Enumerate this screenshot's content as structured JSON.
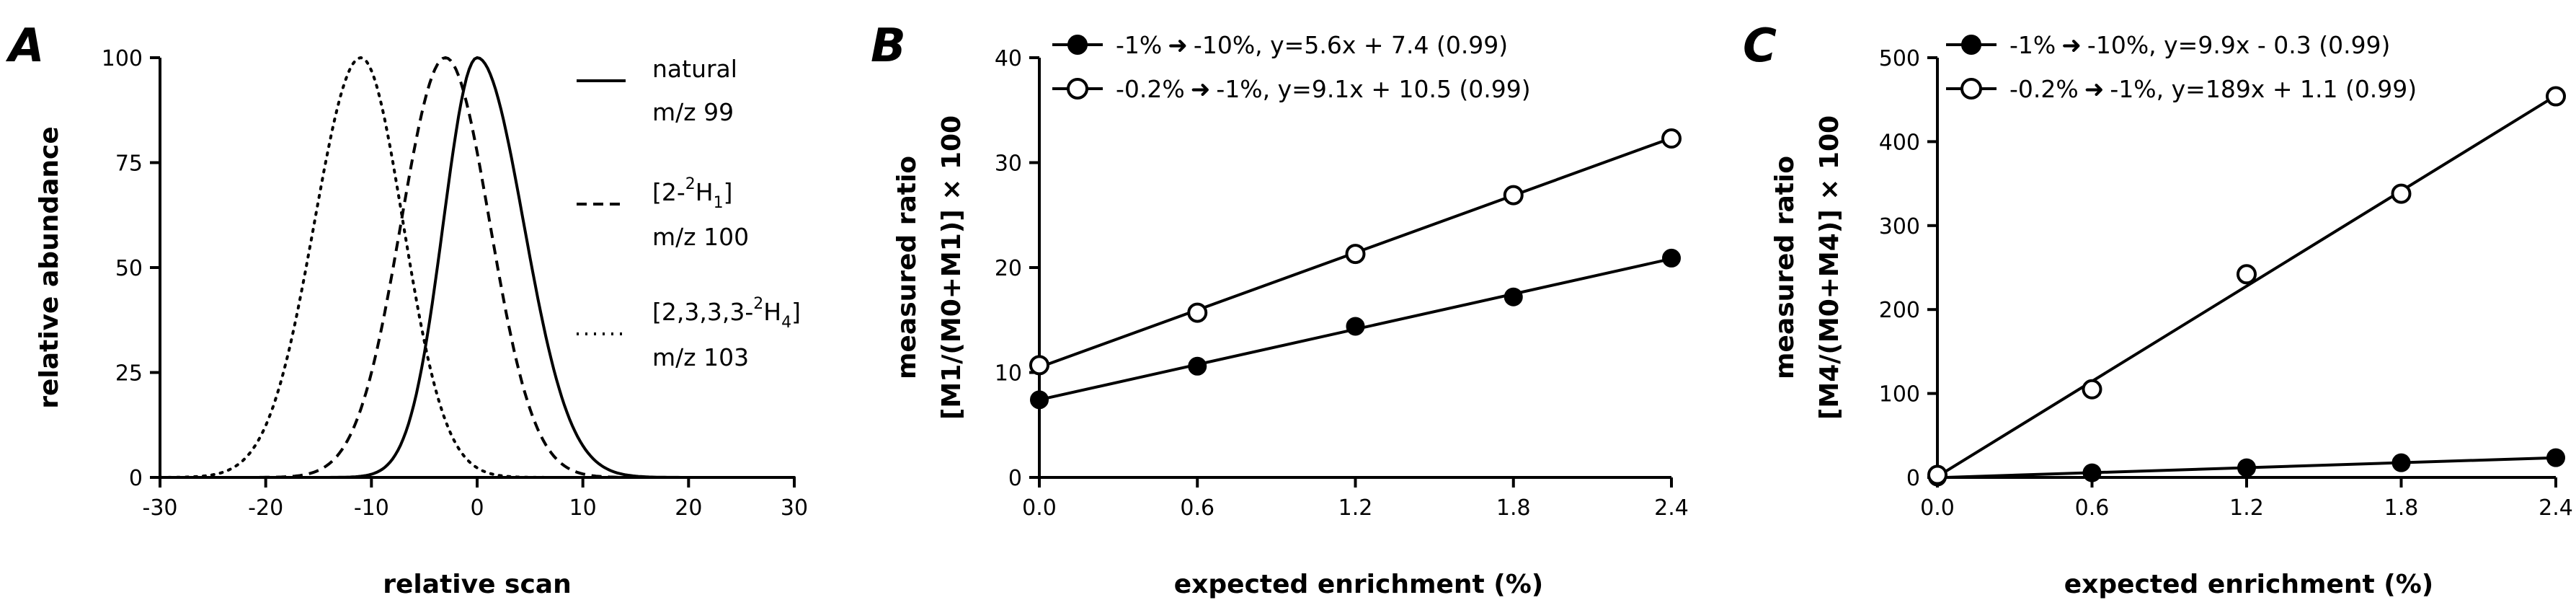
{
  "figure": {
    "panels": [
      {
        "panel_label": "A",
        "xlabel": "relative scan",
        "ylabel": "relative abundance",
        "x_ticks": [
          "-30",
          "-20",
          "-10",
          "0",
          "10",
          "20",
          "30"
        ],
        "y_ticks": [
          "0",
          "25",
          "50",
          "75",
          "100"
        ],
        "legend": [
          {
            "line1": "natural",
            "line2": "m/z 99",
            "style": "solid"
          },
          {
            "line1_pre": "[2-",
            "line1_sup": "2",
            "line1_base": "H",
            "line1_sub": "1",
            "line1_post": "]",
            "line2": "m/z 100",
            "style": "dashed"
          },
          {
            "line1_pre": "[2,3,3,3-",
            "line1_sup": "2",
            "line1_base": "H",
            "line1_sub": "4",
            "line1_post": "]",
            "line2": "m/z 103",
            "style": "dotted"
          }
        ]
      },
      {
        "panel_label": "B",
        "xlabel": "expected enrichment (%)",
        "ylabel_line1": "measured ratio",
        "ylabel_line2": "[M1/(M0+M1)] × 100",
        "x_ticks": [
          "0.0",
          "0.6",
          "1.2",
          "1.8",
          "2.4"
        ],
        "y_ticks": [
          "0",
          "10",
          "20",
          "30",
          "40"
        ],
        "legend": [
          {
            "from": "-1%",
            "to": "-10%, y=5.6x + 7.4 (0.99)",
            "marker": "filled"
          },
          {
            "from": "-0.2%",
            "to": "-1%, y=9.1x + 10.5 (0.99)",
            "marker": "open"
          }
        ]
      },
      {
        "panel_label": "C",
        "xlabel": "expected enrichment (%)",
        "ylabel_line1": "measured ratio",
        "ylabel_line2": "[M4/(M0+M4)] × 100",
        "x_ticks": [
          "0.0",
          "0.6",
          "1.2",
          "1.8",
          "2.4"
        ],
        "y_ticks": [
          "0",
          "100",
          "200",
          "300",
          "400",
          "500"
        ],
        "legend": [
          {
            "from": "-1%",
            "to": "-10%, y=9.9x - 0.3 (0.99)",
            "marker": "filled"
          },
          {
            "from": "-0.2%",
            "to": "-1%, y=189x + 1.1 (0.99)",
            "marker": "open"
          }
        ]
      }
    ]
  },
  "chart_data": [
    {
      "type": "line",
      "title": "A",
      "xlabel": "relative scan",
      "ylabel": "relative abundance",
      "xlim": [
        -30,
        30
      ],
      "ylim": [
        0,
        100
      ],
      "series": [
        {
          "name": "natural m/z 99",
          "style": "solid",
          "peak_x": 0,
          "peak_y": 100,
          "sigma_left": 3.2,
          "sigma_right": 4.4
        },
        {
          "name": "[2-2H1] m/z 100",
          "style": "dashed",
          "peak_x": -3,
          "peak_y": 100,
          "sigma_left": 4.2,
          "sigma_right": 4.2
        },
        {
          "name": "[2,3,3,3-2H4] m/z 103",
          "style": "dotted",
          "peak_x": -11,
          "peak_y": 100,
          "sigma_left": 4.4,
          "sigma_right": 4.0
        }
      ]
    },
    {
      "type": "scatter",
      "title": "B",
      "xlabel": "expected enrichment (%)",
      "ylabel": "measured ratio [M1/(M0+M1)] × 100",
      "xlim": [
        0,
        2.4
      ],
      "ylim": [
        0,
        40
      ],
      "x": [
        0.0,
        0.6,
        1.2,
        1.8,
        2.4
      ],
      "series": [
        {
          "name": "-1% → -10%",
          "marker": "filled",
          "values": [
            7.4,
            10.6,
            14.4,
            17.2,
            20.9
          ],
          "fit": {
            "slope": 5.6,
            "intercept": 7.4,
            "r2": 0.99
          }
        },
        {
          "name": "-0.2% → -1%",
          "marker": "open",
          "values": [
            10.7,
            15.7,
            21.3,
            26.9,
            32.3
          ],
          "fit": {
            "slope": 9.1,
            "intercept": 10.5,
            "r2": 0.99
          }
        }
      ]
    },
    {
      "type": "scatter",
      "title": "C",
      "xlabel": "expected enrichment (%)",
      "ylabel": "measured ratio [M4/(M0+M4)] × 100",
      "xlim": [
        0,
        2.4
      ],
      "ylim": [
        0,
        500
      ],
      "x": [
        0.0,
        0.6,
        1.2,
        1.8,
        2.4
      ],
      "series": [
        {
          "name": "-1% → -10%",
          "marker": "filled",
          "values": [
            0.5,
            5.5,
            11.5,
            17.5,
            23.5
          ],
          "fit": {
            "slope": 9.9,
            "intercept": -0.3,
            "r2": 0.99
          }
        },
        {
          "name": "-0.2% → -1%",
          "marker": "open",
          "values": [
            3,
            105,
            242,
            338,
            454
          ],
          "fit": {
            "slope": 189,
            "intercept": 1.1,
            "r2": 0.99
          }
        }
      ]
    }
  ]
}
